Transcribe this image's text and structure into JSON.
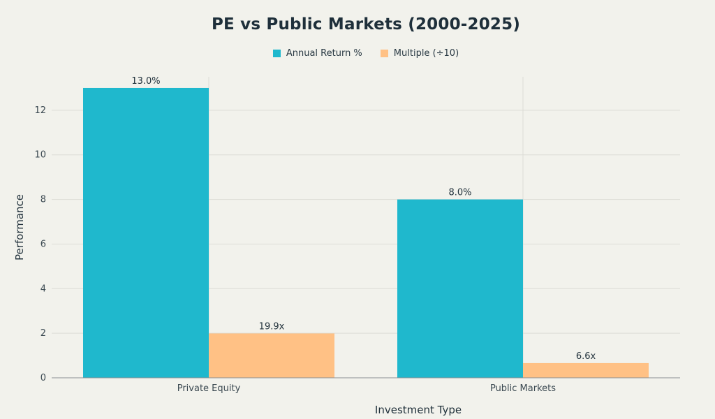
{
  "chart_data": {
    "type": "bar",
    "title": "PE vs Public Markets (2000-2025)",
    "xlabel": "Investment Type",
    "ylabel": "Performance",
    "categories": [
      "Private Equity",
      "Public Markets"
    ],
    "ylim": [
      0,
      13.5
    ],
    "yticks": [
      0,
      2,
      4,
      6,
      8,
      10,
      12
    ],
    "grid": true,
    "legend_position": "top-center",
    "series": [
      {
        "name": "Annual Return %",
        "color": "#1fb8cd",
        "values": [
          13.0,
          8.0
        ],
        "labels": [
          "13.0%",
          "8.0%"
        ]
      },
      {
        "name": "Multiple (÷10)",
        "color": "#ffc185",
        "values": [
          1.99,
          0.66
        ],
        "labels": [
          "19.9x",
          "6.6x"
        ]
      }
    ]
  },
  "colors": {
    "background": "#f2f2ec",
    "grid": "#dcdcd6",
    "axis": "#8a8f92"
  }
}
